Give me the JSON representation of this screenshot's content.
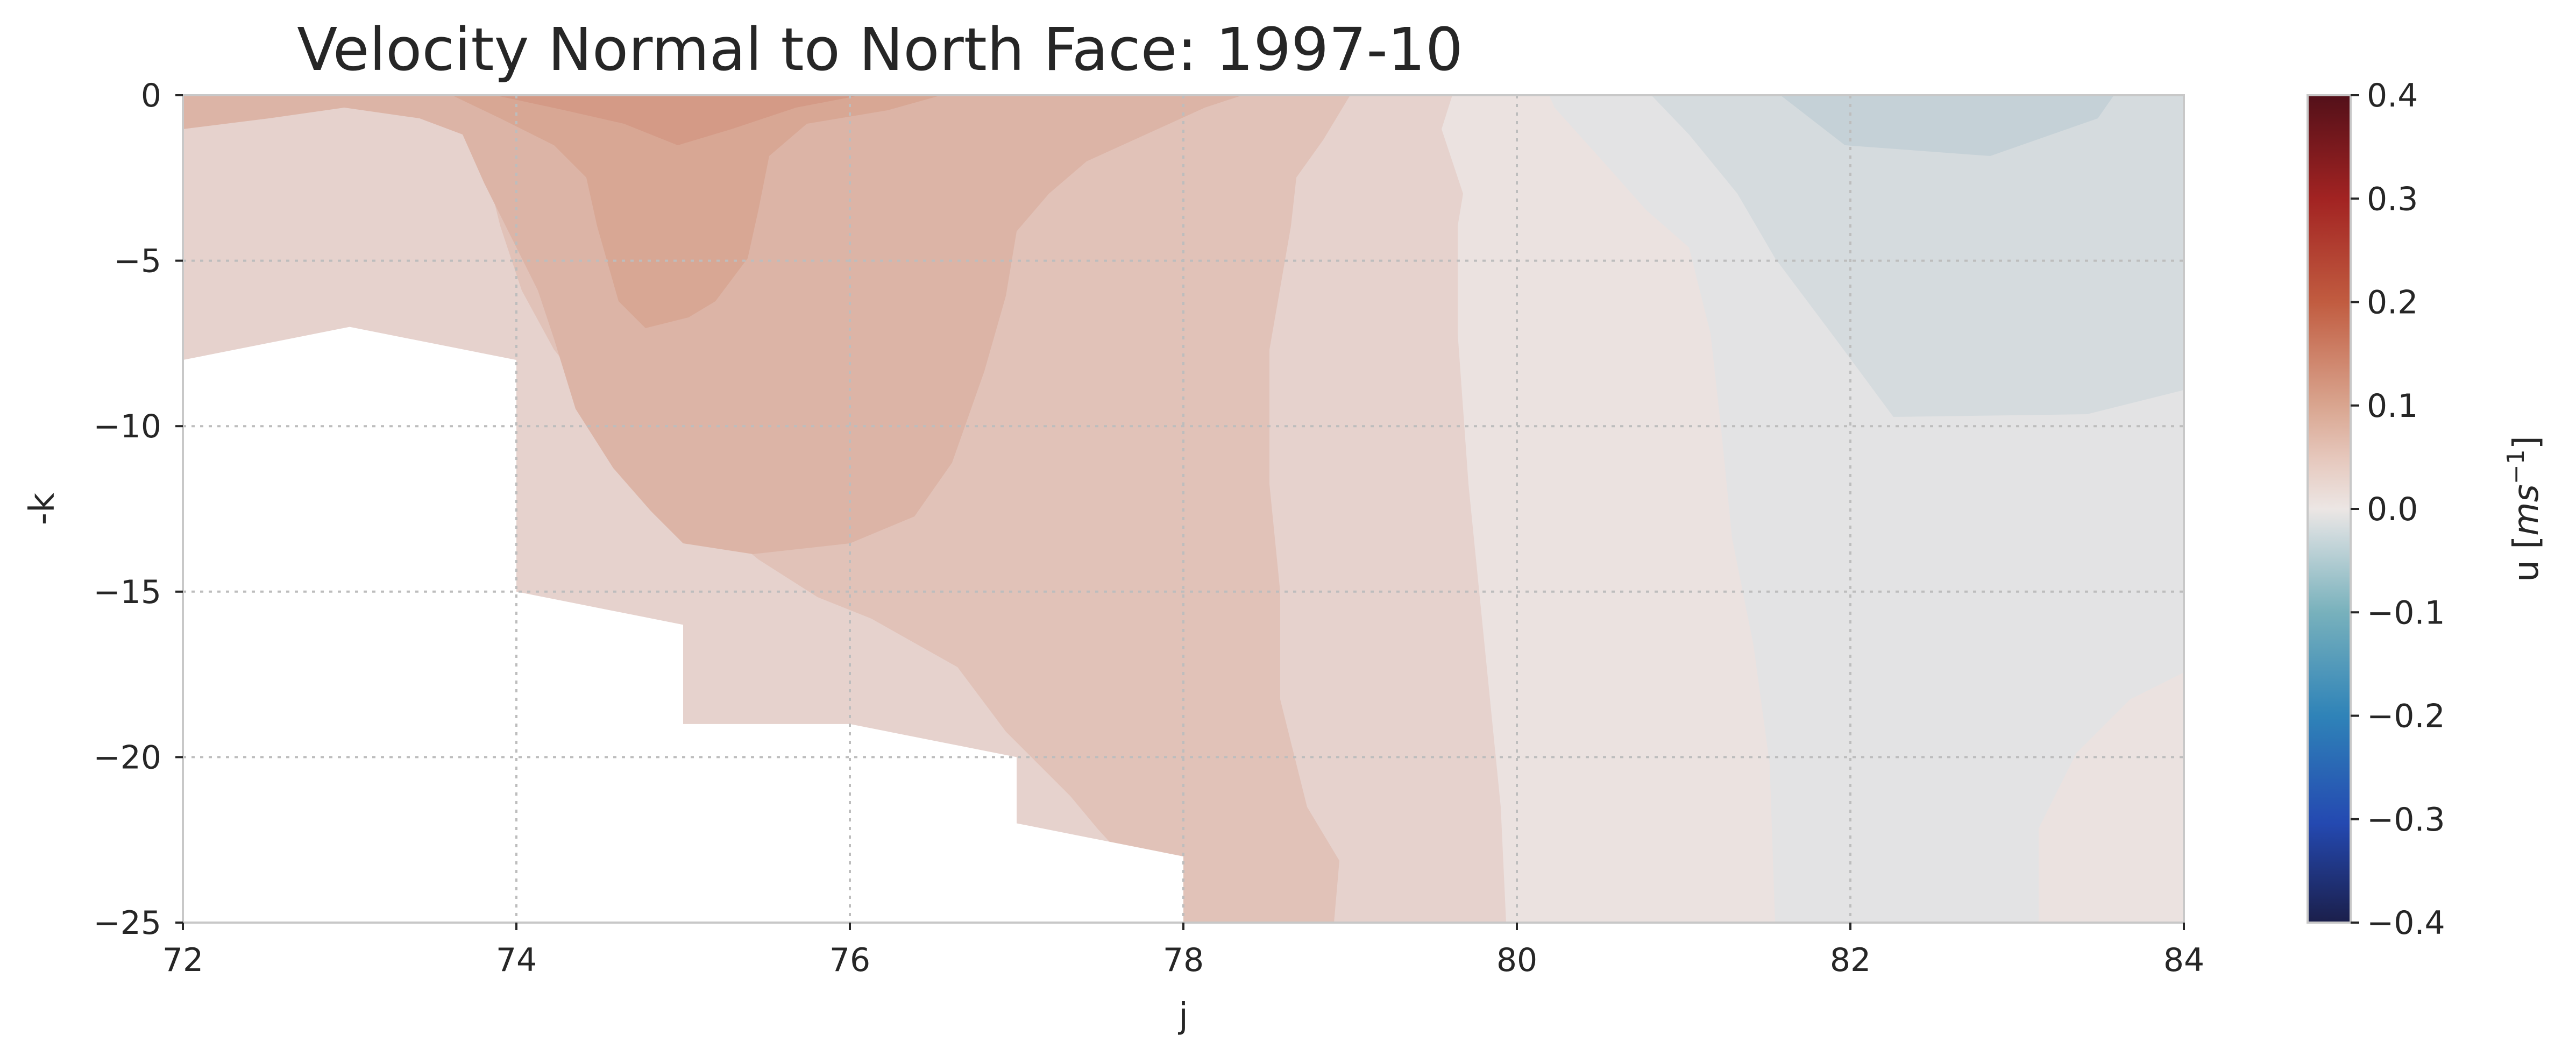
{
  "chart_data": {
    "type": "heatmap",
    "subtype": "filled-contour",
    "title": "Velocity Normal to North Face: 1997-10",
    "xlabel": "j",
    "ylabel": "-k",
    "xlim": [
      72,
      84
    ],
    "ylim": [
      -25,
      0
    ],
    "x_ticks": [
      72,
      74,
      76,
      78,
      80,
      82,
      84
    ],
    "y_ticks": [
      0,
      -5,
      -10,
      -15,
      -20,
      -25
    ],
    "grid": true,
    "colorbar": {
      "label_prefix": "u [",
      "label_math": "ms",
      "label_exp": "−1",
      "label_suffix": "]",
      "vmin": -0.4,
      "vmax": 0.4,
      "ticks": [
        0.4,
        0.3,
        0.2,
        0.1,
        0.0,
        -0.1,
        -0.2,
        -0.3,
        -0.4
      ],
      "tick_labels": [
        "0.4",
        "0.3",
        "0.2",
        "0.1",
        "0.0",
        "−0.1",
        "−0.2",
        "−0.3",
        "−0.4"
      ],
      "levels": 32,
      "colors": [
        "#1b1f4b",
        "#212d74",
        "#233b97",
        "#2449b1",
        "#2257c2",
        "#2166bf",
        "#2575bb",
        "#2f83b8",
        "#3e90b5",
        "#4f9cb5",
        "#63a7b8",
        "#78b1bc",
        "#8ebbc3",
        "#a3c6cb",
        "#b9d0d5",
        "#cfdadd",
        "#e5e2e1",
        "#e9d9d5",
        "#e6c8bd",
        "#e0b7a6",
        "#d9a58f",
        "#d3937a",
        "#cd8165",
        "#c76f52",
        "#c15c40",
        "#b84a33",
        "#ad3629",
        "#a22322",
        "#93161f",
        "#7e101e",
        "#690d1c",
        "#531019"
      ]
    },
    "contour_fill": [
      {
        "level_range": [
          0.12,
          0.15
        ],
        "color": "#d49a86"
      },
      {
        "level_range": [
          0.1,
          0.12
        ],
        "color": "#d8a794"
      },
      {
        "level_range": [
          0.075,
          0.1
        ],
        "color": "#dcb4a6"
      },
      {
        "level_range": [
          0.05,
          0.075
        ],
        "color": "#e1c2b8"
      },
      {
        "level_range": [
          0.025,
          0.05
        ],
        "color": "#e6d2cd"
      },
      {
        "level_range": [
          0.0,
          0.025
        ],
        "color": "#ebe2e0"
      },
      {
        "level_range": [
          -0.025,
          0.0
        ],
        "color": "#e3e3e4"
      },
      {
        "level_range": [
          -0.05,
          -0.025
        ],
        "color": "#d5dbde"
      },
      {
        "level_range": [
          -0.075,
          -0.05
        ],
        "color": "#c5d1d7"
      }
    ],
    "bathymetry_mask": [
      [
        72,
        -8
      ],
      [
        73,
        -7
      ],
      [
        74,
        -8
      ],
      [
        74,
        -15
      ],
      [
        75,
        -16
      ],
      [
        75,
        -19
      ],
      [
        76,
        -19
      ],
      [
        77,
        -20
      ],
      [
        77,
        -22
      ],
      [
        78,
        -23
      ],
      [
        78,
        -25
      ],
      [
        72,
        -25
      ]
    ]
  }
}
